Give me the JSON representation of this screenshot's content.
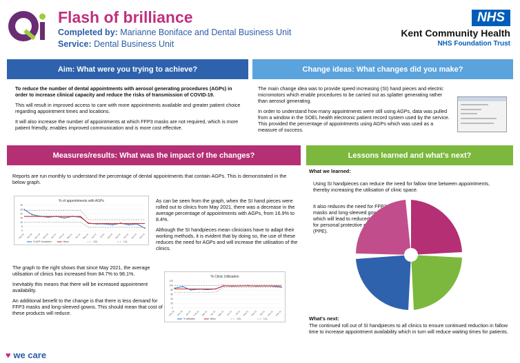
{
  "header": {
    "title": "Flash of brilliance",
    "completed_label": "Completed by:",
    "completed_value": "Marianne Boniface and Dental Business Unit",
    "service_label": "Service:",
    "service_value": "Dental Business Unit",
    "nhs_badge": "NHS",
    "org_name": "Kent Community Health",
    "org_sub": "NHS Foundation Trust"
  },
  "colors": {
    "title_pink": "#c0307d",
    "header_blue": "#2a5da8",
    "aim_bar": "#2e62ad",
    "change_bar": "#5aa3dd",
    "measures_bar": "#b42f74",
    "lessons_bar": "#7cb83d",
    "nhs_blue": "#005eb8"
  },
  "aim": {
    "heading": "Aim: What were you trying to achieve?",
    "p1": "To reduce the number of dental appointments with aerosol generating procedures (AGPs) in order to increase clinical capacity and reduce the risks of transmission of COVID-19.",
    "p2": "This will result in improved access to care with more appointments available and greater patient choice regarding appointment times and locations.",
    "p3": "It will also increase the number of appointments at which FFP3 masks are not required, which is more patient friendly, enables improved communication and is more cost effective."
  },
  "change": {
    "heading": "Change ideas: What changes did you make?",
    "p1": "The main change idea was to provide speed increasing (SI)  hand pieces and electric micromotors which enable procedures to be carried out as splatter generating rather than aerosol generating.",
    "p2": "In order to understand how many appointments were still using AGPs, data was pulled from a window in the SOEL health electronic patient record system used by the service. This provided the percentage of appointments using AGPs which was used as a measure of success."
  },
  "measures": {
    "heading": "Measures/results: What was the impact of the changes?",
    "intro": "Reports are run monthly to understand the percentage of dental appointments that contain AGPs. This is demonstrated in the below graph.",
    "side1": "As can be seen from the graph, when the SI hand pieces were rolled out to clinics from May 2021, there was a decrease in the average percentage of appointments with AGPs, from 16.9% to 8.4%.",
    "side2": "Although the SI handpieces mean clinicians have to adapt their working methods, it is evident that by doing so, the use of these reduces the need for AGPs and will increase the utilisation of the clinics.",
    "low1": "The graph to the right shows that since May 2021, the average utilisation of clinics has increased from 84.7% to 98.1%.",
    "low2": "Inevitably this means that there will be increased appointment availability.",
    "low3": "An additional benefit to the change is that there is less demand for FFP3 masks and long-sleeved gowns. This should mean that cost of these products will reduce."
  },
  "lessons": {
    "heading": "Lessons learned and what's next?",
    "learned_title": "What we learned:",
    "l1": "Using SI handpieces can reduce the need for fallow time between appointments, thereby increasing the utilisation of clinic space.",
    "l2": "It also reduces the need for FFP3 masks and long-sleeved gowns, which will lead to reduced costs for personal protective equipment (PPE).",
    "next_title": "What's next:",
    "next_text": "The continued roll out of SI handpieces to all clinics to ensure continued reduction in fallow time to increase appointment availability which in turn will reduce waiting times for patients."
  },
  "footer": {
    "we_care": "we care"
  },
  "chart_data": [
    {
      "type": "line",
      "title": "% of appointments with AGPs",
      "categories": [
        "Sep-20",
        "Oct-20",
        "Nov-20",
        "Dec-20",
        "Jan-21",
        "Feb-21",
        "Mar-21",
        "Apr-21",
        "May-21",
        "Jun-21",
        "Jul-21",
        "Aug-21",
        "Sep-21",
        "Oct-21",
        "Nov-21",
        "Dec-21"
      ],
      "ylim": [
        0,
        30
      ],
      "yticks": [
        0,
        5,
        10,
        15,
        20,
        25,
        30
      ],
      "series": [
        {
          "name": "% AGP Completed",
          "values": [
            25,
            19,
            17,
            16,
            17,
            15,
            17,
            16,
            9,
            8,
            8,
            7,
            9,
            7,
            8,
            3
          ]
        },
        {
          "name": "Mean",
          "values": [
            16.9,
            16.9,
            16.9,
            16.9,
            16.9,
            16.9,
            16.9,
            16.9,
            8.4,
            8.4,
            8.4,
            8.4,
            8.4,
            8.4,
            8.4,
            8.4
          ]
        },
        {
          "name": "UCL",
          "values": [
            24,
            24,
            24,
            24,
            24,
            24,
            24,
            24,
            13,
            13,
            13,
            13,
            13,
            13,
            13,
            13
          ]
        },
        {
          "name": "LCL",
          "values": [
            10,
            10,
            10,
            10,
            10,
            10,
            10,
            10,
            4,
            4,
            4,
            4,
            4,
            4,
            4,
            4
          ]
        }
      ],
      "legend": "bottom"
    },
    {
      "type": "line",
      "title": "% Clinic Utilisation",
      "categories": [
        "Nov-20",
        "Dec-20",
        "Jan-21",
        "Feb-21",
        "Mar-21",
        "Apr-21",
        "May-21",
        "Jun-21",
        "Jul-21",
        "Aug-21",
        "Sep-21",
        "Oct-21",
        "Nov-21",
        "Dec-21"
      ],
      "ylim": [
        0,
        120
      ],
      "yticks": [
        0,
        20,
        40,
        60,
        80,
        100,
        120
      ],
      "series": [
        {
          "name": "% utilisation",
          "values": [
            88,
            95,
            80,
            84,
            82,
            85,
            99,
            97,
            98,
            99,
            97,
            98,
            97,
            92
          ]
        },
        {
          "name": "Mean",
          "values": [
            84.7,
            84.7,
            84.7,
            84.7,
            84.7,
            84.7,
            98.1,
            98.1,
            98.1,
            98.1,
            98.1,
            98.1,
            98.1,
            98.1
          ]
        },
        {
          "name": "UCL",
          "values": [
            100,
            100,
            100,
            100,
            100,
            100,
            104,
            104,
            104,
            104,
            104,
            104,
            104,
            104
          ]
        },
        {
          "name": "LCL",
          "values": [
            70,
            70,
            70,
            70,
            70,
            70,
            92,
            92,
            92,
            92,
            92,
            92,
            92,
            92
          ]
        }
      ],
      "legend": "bottom"
    }
  ]
}
